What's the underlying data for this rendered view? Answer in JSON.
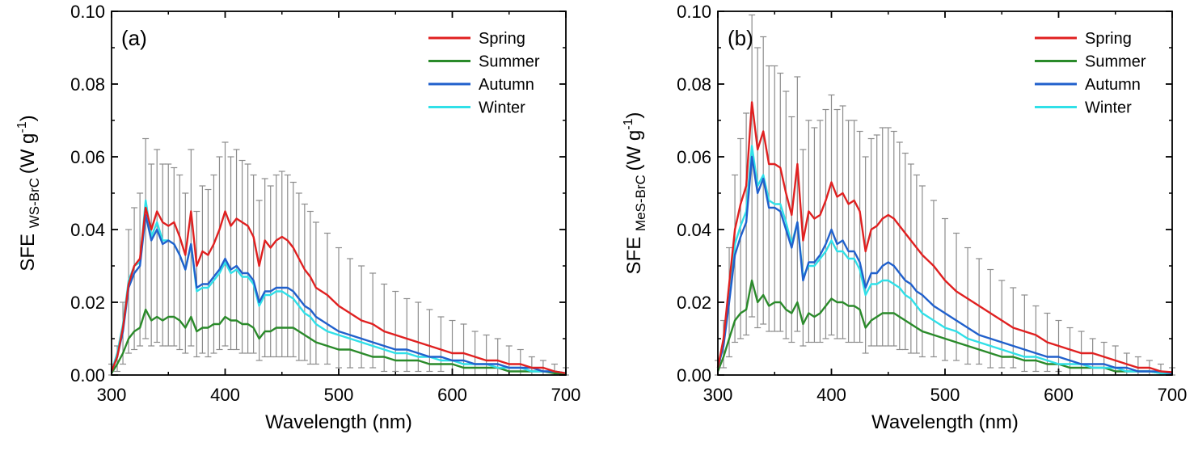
{
  "chart_data": [
    {
      "type": "line",
      "panel_label": "(a)",
      "xlabel": "Wavelength (nm)",
      "ylabel_main": "SFE",
      "ylabel_sub": "WS-BrC",
      "ylabel_unit": "(W g",
      "ylabel_exp": "-1",
      "ylabel_close": ")",
      "xlim": [
        300,
        700
      ],
      "ylim": [
        0,
        0.1
      ],
      "xticks": [
        300,
        400,
        500,
        600,
        700
      ],
      "yticks": [
        0.0,
        0.02,
        0.04,
        0.06,
        0.08,
        0.1
      ],
      "xtick_labels": [
        "300",
        "400",
        "500",
        "600",
        "700"
      ],
      "ytick_labels": [
        "0.00",
        "0.02",
        "0.04",
        "0.06",
        "0.08",
        "0.10"
      ],
      "legend_position": "top-right",
      "grid": false,
      "x": [
        300,
        305,
        310,
        315,
        320,
        325,
        330,
        335,
        340,
        345,
        350,
        355,
        360,
        365,
        370,
        375,
        380,
        385,
        390,
        395,
        400,
        405,
        410,
        415,
        420,
        425,
        430,
        435,
        440,
        445,
        450,
        455,
        460,
        465,
        470,
        475,
        480,
        490,
        500,
        510,
        520,
        530,
        540,
        550,
        560,
        570,
        580,
        590,
        600,
        610,
        620,
        630,
        640,
        650,
        660,
        670,
        680,
        690,
        700
      ],
      "series": [
        {
          "name": "Spring",
          "color": "#e02020",
          "values": [
            0.001,
            0.005,
            0.013,
            0.025,
            0.03,
            0.032,
            0.046,
            0.04,
            0.045,
            0.042,
            0.041,
            0.042,
            0.038,
            0.033,
            0.045,
            0.03,
            0.034,
            0.033,
            0.036,
            0.04,
            0.045,
            0.041,
            0.043,
            0.042,
            0.041,
            0.038,
            0.03,
            0.037,
            0.035,
            0.037,
            0.038,
            0.037,
            0.035,
            0.032,
            0.029,
            0.027,
            0.024,
            0.022,
            0.019,
            0.017,
            0.015,
            0.014,
            0.012,
            0.011,
            0.01,
            0.009,
            0.008,
            0.007,
            0.006,
            0.006,
            0.005,
            0.004,
            0.004,
            0.003,
            0.003,
            0.002,
            0.002,
            0.001,
            0.0005
          ]
        },
        {
          "name": "Summer",
          "color": "#2a8a2a",
          "values": [
            0.0005,
            0.003,
            0.006,
            0.01,
            0.012,
            0.013,
            0.018,
            0.015,
            0.016,
            0.015,
            0.016,
            0.016,
            0.015,
            0.013,
            0.016,
            0.012,
            0.013,
            0.013,
            0.014,
            0.014,
            0.016,
            0.015,
            0.015,
            0.014,
            0.014,
            0.013,
            0.01,
            0.012,
            0.012,
            0.013,
            0.013,
            0.013,
            0.013,
            0.012,
            0.011,
            0.01,
            0.009,
            0.008,
            0.007,
            0.007,
            0.006,
            0.005,
            0.005,
            0.004,
            0.004,
            0.004,
            0.003,
            0.003,
            0.003,
            0.002,
            0.002,
            0.002,
            0.002,
            0.001,
            0.001,
            0.001,
            0.001,
            0.0005,
            0.0003
          ]
        },
        {
          "name": "Autumn",
          "color": "#2060cc",
          "values": [
            0.001,
            0.005,
            0.012,
            0.024,
            0.028,
            0.03,
            0.044,
            0.037,
            0.04,
            0.036,
            0.037,
            0.036,
            0.033,
            0.029,
            0.036,
            0.024,
            0.025,
            0.025,
            0.027,
            0.029,
            0.032,
            0.029,
            0.03,
            0.028,
            0.028,
            0.026,
            0.02,
            0.023,
            0.023,
            0.024,
            0.024,
            0.024,
            0.023,
            0.021,
            0.019,
            0.018,
            0.016,
            0.014,
            0.012,
            0.011,
            0.01,
            0.009,
            0.008,
            0.007,
            0.007,
            0.006,
            0.005,
            0.005,
            0.004,
            0.004,
            0.003,
            0.003,
            0.003,
            0.002,
            0.002,
            0.002,
            0.001,
            0.001,
            0.0005
          ]
        },
        {
          "name": "Winter",
          "color": "#30e0e8",
          "values": [
            0.001,
            0.006,
            0.014,
            0.026,
            0.03,
            0.031,
            0.048,
            0.038,
            0.042,
            0.037,
            0.037,
            0.036,
            0.033,
            0.029,
            0.036,
            0.023,
            0.024,
            0.024,
            0.026,
            0.028,
            0.031,
            0.028,
            0.029,
            0.027,
            0.027,
            0.025,
            0.019,
            0.022,
            0.022,
            0.023,
            0.023,
            0.022,
            0.021,
            0.019,
            0.017,
            0.016,
            0.014,
            0.012,
            0.011,
            0.01,
            0.009,
            0.008,
            0.007,
            0.006,
            0.006,
            0.005,
            0.005,
            0.004,
            0.004,
            0.003,
            0.003,
            0.003,
            0.002,
            0.002,
            0.002,
            0.001,
            0.001,
            0.001,
            0.0005
          ]
        }
      ],
      "error_upper": [
        0.003,
        0.008,
        0.02,
        0.04,
        0.046,
        0.05,
        0.065,
        0.058,
        0.062,
        0.058,
        0.058,
        0.057,
        0.055,
        0.05,
        0.062,
        0.045,
        0.052,
        0.051,
        0.055,
        0.06,
        0.064,
        0.06,
        0.062,
        0.059,
        0.058,
        0.055,
        0.048,
        0.054,
        0.052,
        0.055,
        0.056,
        0.055,
        0.053,
        0.05,
        0.047,
        0.045,
        0.042,
        0.039,
        0.035,
        0.032,
        0.03,
        0.028,
        0.025,
        0.023,
        0.021,
        0.02,
        0.018,
        0.016,
        0.015,
        0.014,
        0.012,
        0.011,
        0.01,
        0.008,
        0.007,
        0.005,
        0.004,
        0.003,
        0.002
      ],
      "error_lower": [
        0.0,
        0.001,
        0.003,
        0.006,
        0.007,
        0.008,
        0.01,
        0.008,
        0.009,
        0.008,
        0.008,
        0.008,
        0.007,
        0.006,
        0.008,
        0.005,
        0.006,
        0.005,
        0.006,
        0.007,
        0.008,
        0.007,
        0.007,
        0.006,
        0.006,
        0.006,
        0.004,
        0.005,
        0.005,
        0.005,
        0.005,
        0.005,
        0.005,
        0.004,
        0.004,
        0.003,
        0.003,
        0.003,
        0.002,
        0.002,
        0.002,
        0.002,
        0.001,
        0.001,
        0.001,
        0.001,
        0.001,
        0.001,
        0.0,
        0.0,
        0.0,
        0.0,
        0.0,
        0.0,
        0.0,
        0.0,
        0.0,
        0.0,
        0.0
      ]
    },
    {
      "type": "line",
      "panel_label": "(b)",
      "xlabel": "Wavelength (nm)",
      "ylabel_main": "SFE",
      "ylabel_sub": "MeS-BrC",
      "ylabel_unit": "(W g",
      "ylabel_exp": "-1",
      "ylabel_close": ")",
      "xlim": [
        300,
        700
      ],
      "ylim": [
        0,
        0.1
      ],
      "xticks": [
        300,
        400,
        500,
        600,
        700
      ],
      "yticks": [
        0.0,
        0.02,
        0.04,
        0.06,
        0.08,
        0.1
      ],
      "xtick_labels": [
        "300",
        "400",
        "500",
        "600",
        "700"
      ],
      "ytick_labels": [
        "0.00",
        "0.02",
        "0.04",
        "0.06",
        "0.08",
        "0.10"
      ],
      "legend_position": "top-right",
      "grid": false,
      "x": [
        300,
        305,
        310,
        315,
        320,
        325,
        330,
        335,
        340,
        345,
        350,
        355,
        360,
        365,
        370,
        375,
        380,
        385,
        390,
        395,
        400,
        405,
        410,
        415,
        420,
        425,
        430,
        435,
        440,
        445,
        450,
        455,
        460,
        465,
        470,
        475,
        480,
        490,
        500,
        510,
        520,
        530,
        540,
        550,
        560,
        570,
        580,
        590,
        600,
        610,
        620,
        630,
        640,
        650,
        660,
        670,
        680,
        690,
        700
      ],
      "series": [
        {
          "name": "Spring",
          "color": "#e02020",
          "values": [
            0.002,
            0.01,
            0.025,
            0.04,
            0.047,
            0.052,
            0.075,
            0.062,
            0.067,
            0.058,
            0.058,
            0.057,
            0.05,
            0.044,
            0.058,
            0.037,
            0.045,
            0.043,
            0.044,
            0.048,
            0.053,
            0.049,
            0.05,
            0.047,
            0.048,
            0.045,
            0.034,
            0.04,
            0.041,
            0.043,
            0.044,
            0.043,
            0.041,
            0.039,
            0.037,
            0.035,
            0.033,
            0.03,
            0.026,
            0.023,
            0.021,
            0.019,
            0.017,
            0.015,
            0.013,
            0.012,
            0.011,
            0.009,
            0.008,
            0.007,
            0.006,
            0.006,
            0.005,
            0.004,
            0.003,
            0.002,
            0.002,
            0.001,
            0.0008
          ]
        },
        {
          "name": "Summer",
          "color": "#2a8a2a",
          "values": [
            0.001,
            0.005,
            0.01,
            0.015,
            0.017,
            0.018,
            0.026,
            0.02,
            0.022,
            0.019,
            0.02,
            0.02,
            0.018,
            0.017,
            0.02,
            0.014,
            0.017,
            0.016,
            0.017,
            0.019,
            0.021,
            0.02,
            0.02,
            0.019,
            0.019,
            0.018,
            0.013,
            0.015,
            0.016,
            0.017,
            0.017,
            0.017,
            0.016,
            0.015,
            0.014,
            0.013,
            0.012,
            0.011,
            0.01,
            0.009,
            0.008,
            0.007,
            0.006,
            0.005,
            0.005,
            0.004,
            0.004,
            0.003,
            0.003,
            0.002,
            0.002,
            0.002,
            0.002,
            0.001,
            0.001,
            0.001,
            0.001,
            0.0005,
            0.0003
          ]
        },
        {
          "name": "Autumn",
          "color": "#2060cc",
          "values": [
            0.002,
            0.008,
            0.02,
            0.033,
            0.038,
            0.042,
            0.06,
            0.05,
            0.054,
            0.046,
            0.046,
            0.045,
            0.04,
            0.035,
            0.042,
            0.026,
            0.031,
            0.031,
            0.033,
            0.036,
            0.04,
            0.036,
            0.037,
            0.034,
            0.034,
            0.031,
            0.024,
            0.028,
            0.028,
            0.03,
            0.031,
            0.03,
            0.028,
            0.026,
            0.025,
            0.023,
            0.022,
            0.019,
            0.017,
            0.015,
            0.013,
            0.011,
            0.01,
            0.009,
            0.008,
            0.007,
            0.006,
            0.005,
            0.005,
            0.004,
            0.003,
            0.003,
            0.003,
            0.002,
            0.002,
            0.001,
            0.001,
            0.001,
            0.0005
          ]
        },
        {
          "name": "Winter",
          "color": "#30e0e8",
          "values": [
            0.002,
            0.009,
            0.022,
            0.036,
            0.041,
            0.045,
            0.063,
            0.052,
            0.055,
            0.048,
            0.047,
            0.047,
            0.042,
            0.036,
            0.042,
            0.027,
            0.03,
            0.03,
            0.032,
            0.034,
            0.037,
            0.034,
            0.034,
            0.032,
            0.032,
            0.029,
            0.022,
            0.025,
            0.025,
            0.026,
            0.026,
            0.025,
            0.024,
            0.022,
            0.021,
            0.019,
            0.017,
            0.015,
            0.013,
            0.012,
            0.01,
            0.009,
            0.008,
            0.007,
            0.006,
            0.005,
            0.005,
            0.004,
            0.003,
            0.003,
            0.003,
            0.002,
            0.002,
            0.002,
            0.001,
            0.001,
            0.001,
            0.0005,
            0.0003
          ]
        }
      ],
      "error_upper": [
        0.004,
        0.015,
        0.035,
        0.055,
        0.065,
        0.072,
        0.099,
        0.09,
        0.093,
        0.085,
        0.085,
        0.083,
        0.078,
        0.071,
        0.082,
        0.062,
        0.07,
        0.068,
        0.07,
        0.073,
        0.077,
        0.073,
        0.074,
        0.07,
        0.07,
        0.067,
        0.06,
        0.065,
        0.066,
        0.068,
        0.068,
        0.067,
        0.064,
        0.061,
        0.058,
        0.055,
        0.052,
        0.048,
        0.043,
        0.039,
        0.035,
        0.032,
        0.029,
        0.026,
        0.024,
        0.022,
        0.019,
        0.017,
        0.015,
        0.013,
        0.012,
        0.01,
        0.009,
        0.008,
        0.006,
        0.005,
        0.004,
        0.003,
        0.002
      ],
      "error_lower": [
        0.0,
        0.002,
        0.005,
        0.009,
        0.01,
        0.011,
        0.016,
        0.013,
        0.014,
        0.012,
        0.012,
        0.012,
        0.01,
        0.009,
        0.012,
        0.008,
        0.009,
        0.009,
        0.009,
        0.01,
        0.011,
        0.01,
        0.01,
        0.009,
        0.009,
        0.009,
        0.006,
        0.008,
        0.008,
        0.008,
        0.008,
        0.008,
        0.007,
        0.007,
        0.006,
        0.006,
        0.005,
        0.005,
        0.004,
        0.004,
        0.003,
        0.003,
        0.002,
        0.002,
        0.002,
        0.001,
        0.001,
        0.001,
        0.001,
        0.0,
        0.0,
        0.0,
        0.0,
        0.0,
        0.0,
        0.0,
        0.0,
        0.0,
        0.0
      ]
    }
  ]
}
